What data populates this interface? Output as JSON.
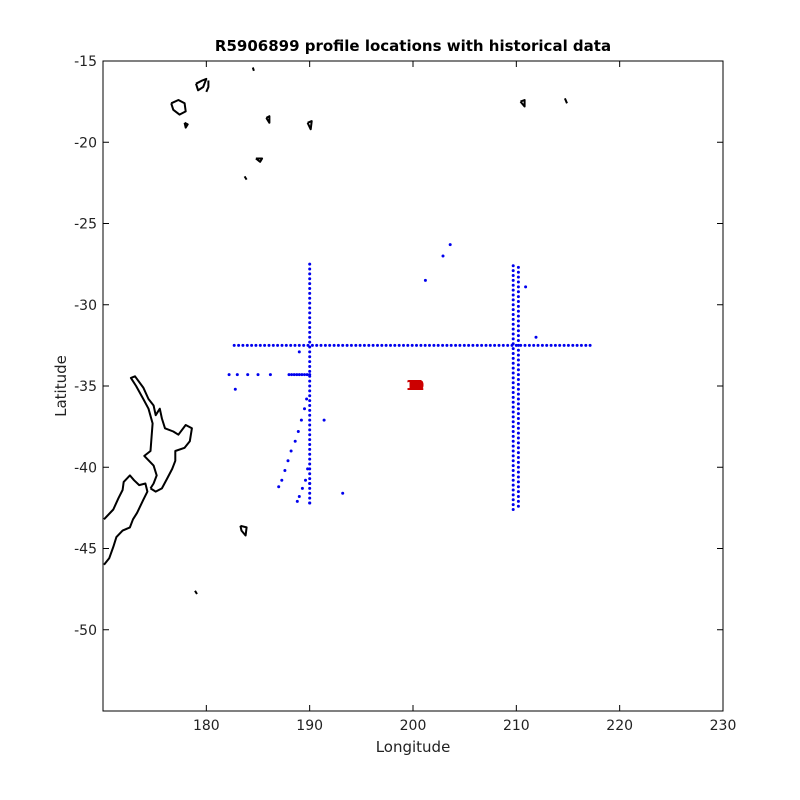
{
  "chart_data": {
    "type": "scatter",
    "title": "R5906899 profile locations with historical data",
    "xlabel": "Longitude",
    "ylabel": "Latitude",
    "xlim": [
      170,
      230
    ],
    "ylim": [
      -55,
      -15
    ],
    "x_ticks": [
      180,
      190,
      200,
      210,
      220,
      230
    ],
    "y_ticks": [
      -15,
      -20,
      -25,
      -30,
      -35,
      -40,
      -45,
      -50
    ],
    "grid": false,
    "legend": "none",
    "colors": {
      "historical": "#0000ee",
      "profile_fill": "#f5c400",
      "profile_label": "#cc0000",
      "coast": "#000000"
    },
    "historical_lines": [
      {
        "lon": 190.0,
        "lat_range": [
          -42.2,
          -27.5
        ],
        "step": 0.3
      },
      {
        "lon": 209.7,
        "lat_range": [
          -42.6,
          -27.5
        ],
        "step": 0.3
      },
      {
        "lon": 210.2,
        "lat_range": [
          -42.4,
          -27.5
        ],
        "step": 0.3
      },
      {
        "lat": -32.5,
        "lon_range": [
          182.7,
          217.2
        ],
        "step": 0.42
      },
      {
        "lat": -34.3,
        "lon_range": [
          188.0,
          190.0
        ],
        "step": 0.25
      }
    ],
    "historical_points": [
      [
        203.6,
        -26.3
      ],
      [
        202.9,
        -27.0
      ],
      [
        201.2,
        -28.5
      ],
      [
        210.9,
        -28.9
      ],
      [
        211.9,
        -32.0
      ],
      [
        182.2,
        -34.3
      ],
      [
        183.0,
        -34.3
      ],
      [
        184.0,
        -34.3
      ],
      [
        185.0,
        -34.3
      ],
      [
        186.2,
        -34.3
      ],
      [
        182.8,
        -35.2
      ],
      [
        189.0,
        -32.9
      ],
      [
        191.4,
        -37.1
      ],
      [
        193.2,
        -41.6
      ],
      [
        189.7,
        -35.8
      ],
      [
        189.5,
        -36.4
      ],
      [
        189.2,
        -37.1
      ],
      [
        188.9,
        -37.8
      ],
      [
        188.6,
        -38.4
      ],
      [
        188.2,
        -39.0
      ],
      [
        187.9,
        -39.6
      ],
      [
        187.6,
        -40.2
      ],
      [
        187.3,
        -40.8
      ],
      [
        187.0,
        -41.2
      ],
      [
        189.8,
        -40.1
      ],
      [
        189.6,
        -40.8
      ],
      [
        189.3,
        -41.3
      ],
      [
        189.0,
        -41.8
      ],
      [
        188.8,
        -42.1
      ],
      [
        190.0,
        -41.0
      ],
      [
        190.0,
        -42.2
      ]
    ],
    "profiles": [
      {
        "label": "1",
        "lon": 200.0,
        "lat": -34.95
      },
      {
        "label": "2",
        "lon": 200.1,
        "lat": -34.95
      },
      {
        "label": "3",
        "lon": 200.2,
        "lat": -34.95
      },
      {
        "label": "4",
        "lon": 200.3,
        "lat": -34.95
      },
      {
        "label": "5",
        "lon": 200.4,
        "lat": -34.95
      },
      {
        "label": "6",
        "lon": 200.1,
        "lat": -34.95
      },
      {
        "label": "7",
        "lon": 200.2,
        "lat": -34.95
      },
      {
        "label": "8",
        "lon": 200.3,
        "lat": -34.95
      },
      {
        "label": "9",
        "lon": 200.2,
        "lat": -34.95
      },
      {
        "label": "10",
        "lon": 200.2,
        "lat": -34.95
      },
      {
        "label": "11",
        "lon": 200.2,
        "lat": -34.95
      },
      {
        "label": "12",
        "lon": 200.2,
        "lat": -34.95
      }
    ],
    "coastlines": [
      [
        [
          170.1,
          -43.2
        ],
        [
          171.0,
          -42.6
        ],
        [
          171.5,
          -41.9
        ],
        [
          171.9,
          -41.4
        ],
        [
          172.0,
          -40.9
        ],
        [
          172.6,
          -40.5
        ],
        [
          173.0,
          -40.8
        ],
        [
          173.5,
          -41.1
        ],
        [
          174.1,
          -41.0
        ],
        [
          174.3,
          -41.5
        ],
        [
          173.9,
          -42.0
        ],
        [
          173.3,
          -42.8
        ],
        [
          172.9,
          -43.2
        ],
        [
          172.6,
          -43.7
        ],
        [
          171.9,
          -43.9
        ],
        [
          171.3,
          -44.3
        ],
        [
          171.0,
          -44.9
        ],
        [
          170.6,
          -45.6
        ],
        [
          170.1,
          -46.0
        ]
      ],
      [
        [
          174.6,
          -41.3
        ],
        [
          175.1,
          -41.5
        ],
        [
          175.7,
          -41.3
        ],
        [
          176.2,
          -40.7
        ],
        [
          176.7,
          -40.1
        ],
        [
          177.0,
          -39.6
        ],
        [
          177.0,
          -39.0
        ],
        [
          177.9,
          -38.8
        ],
        [
          178.4,
          -38.4
        ],
        [
          178.6,
          -37.6
        ],
        [
          178.0,
          -37.4
        ],
        [
          177.3,
          -38.0
        ],
        [
          176.8,
          -37.8
        ],
        [
          176.0,
          -37.6
        ],
        [
          175.7,
          -37.0
        ],
        [
          175.5,
          -36.4
        ],
        [
          175.1,
          -36.8
        ],
        [
          174.9,
          -36.2
        ],
        [
          174.4,
          -35.8
        ],
        [
          173.9,
          -35.1
        ],
        [
          173.1,
          -34.4
        ],
        [
          172.7,
          -34.5
        ],
        [
          173.2,
          -35.0
        ],
        [
          173.9,
          -35.8
        ],
        [
          174.4,
          -36.4
        ],
        [
          174.8,
          -37.3
        ],
        [
          174.7,
          -38.1
        ],
        [
          174.6,
          -39.0
        ],
        [
          174.0,
          -39.3
        ],
        [
          174.9,
          -39.9
        ],
        [
          175.2,
          -40.5
        ],
        [
          174.9,
          -41.0
        ],
        [
          174.6,
          -41.3
        ]
      ],
      [
        [
          176.6,
          -17.6
        ],
        [
          177.3,
          -17.4
        ],
        [
          177.9,
          -17.6
        ],
        [
          178.0,
          -18.1
        ],
        [
          177.4,
          -18.3
        ],
        [
          176.8,
          -18.0
        ],
        [
          176.6,
          -17.6
        ]
      ],
      [
        [
          179.0,
          -16.4
        ],
        [
          179.6,
          -16.2
        ],
        [
          180.0,
          -16.1
        ],
        [
          179.7,
          -16.6
        ],
        [
          179.2,
          -16.8
        ],
        [
          179.0,
          -16.4
        ]
      ],
      [
        [
          180.2,
          -16.2
        ],
        [
          180.2,
          -16.6
        ],
        [
          180.0,
          -16.9
        ]
      ],
      [
        [
          177.9,
          -18.8
        ],
        [
          178.2,
          -18.9
        ],
        [
          178.0,
          -19.1
        ],
        [
          177.9,
          -18.8
        ]
      ],
      [
        [
          184.5,
          -15.4
        ],
        [
          184.6,
          -15.6
        ]
      ],
      [
        [
          185.8,
          -18.5
        ],
        [
          186.1,
          -18.4
        ],
        [
          186.1,
          -18.8
        ],
        [
          185.8,
          -18.5
        ]
      ],
      [
        [
          189.8,
          -18.8
        ],
        [
          190.2,
          -18.7
        ],
        [
          190.1,
          -19.2
        ],
        [
          189.8,
          -18.8
        ]
      ],
      [
        [
          184.8,
          -21.0
        ],
        [
          185.4,
          -21.0
        ],
        [
          185.2,
          -21.2
        ],
        [
          184.8,
          -21.0
        ]
      ],
      [
        [
          183.7,
          -22.1
        ],
        [
          183.9,
          -22.3
        ]
      ],
      [
        [
          210.4,
          -17.5
        ],
        [
          210.8,
          -17.4
        ],
        [
          210.8,
          -17.8
        ],
        [
          210.4,
          -17.5
        ]
      ],
      [
        [
          214.7,
          -17.3
        ],
        [
          214.9,
          -17.6
        ]
      ],
      [
        [
          183.3,
          -43.6
        ],
        [
          183.9,
          -43.7
        ],
        [
          183.8,
          -44.2
        ],
        [
          183.4,
          -43.9
        ],
        [
          183.3,
          -43.6
        ]
      ],
      [
        [
          178.9,
          -47.6
        ],
        [
          179.1,
          -47.8
        ]
      ]
    ]
  }
}
